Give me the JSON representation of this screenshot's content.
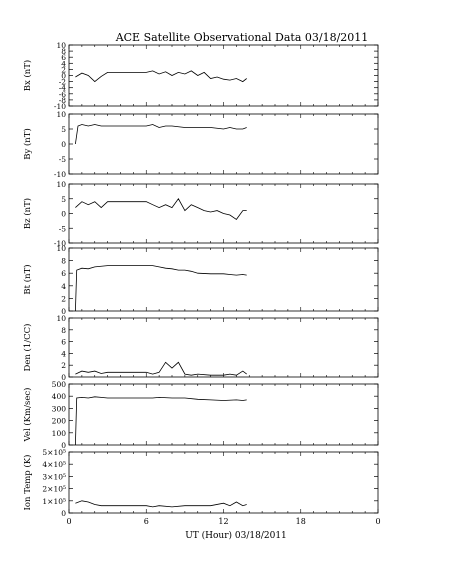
{
  "title": "ACE Satellite Observational Data   03/18/2011",
  "xlabel": "UT (Hour)   03/18/2011",
  "x_ticks": [
    "0",
    "6",
    "12",
    "18",
    "0"
  ],
  "colors": {
    "line": "#000000",
    "background": "#ffffff"
  },
  "chart_data": [
    {
      "type": "line",
      "ylabel": "Bx (nT)",
      "ylim": [
        -10,
        10
      ],
      "yticks": [
        "-10",
        "-8",
        "-6",
        "-4",
        "-2",
        "0",
        "2",
        "4",
        "6",
        "8",
        "10"
      ],
      "xlim": [
        0,
        24
      ],
      "series": [
        {
          "x": [
            0.5,
            1,
            1.5,
            2,
            2.5,
            3,
            4,
            5,
            6,
            6.5,
            7,
            7.5,
            8,
            8.5,
            9,
            9.5,
            10,
            10.5,
            11,
            11.5,
            12,
            12.5,
            13,
            13.5,
            13.8
          ],
          "y": [
            -0.5,
            0.8,
            0,
            -2,
            -0.3,
            1,
            1,
            1,
            1,
            1.5,
            0.5,
            1.2,
            0,
            1,
            0.5,
            1.5,
            0,
            1,
            -1,
            -0.5,
            -1.2,
            -1.5,
            -1,
            -2,
            -1
          ]
        }
      ]
    },
    {
      "type": "line",
      "ylabel": "By (nT)",
      "ylim": [
        -10,
        10
      ],
      "yticks": [
        "-10",
        "-5",
        "0",
        "5",
        "10"
      ],
      "xlim": [
        0,
        24
      ],
      "series": [
        {
          "x": [
            0.5,
            0.7,
            1,
            1.5,
            2,
            2.5,
            3,
            4,
            5,
            6,
            6.5,
            7,
            7.5,
            8,
            9,
            10,
            11,
            12,
            12.5,
            13,
            13.5,
            13.8
          ],
          "y": [
            0,
            6,
            6.5,
            6,
            6.5,
            6,
            6,
            6,
            6,
            6,
            6.5,
            5.5,
            6,
            6,
            5.5,
            5.5,
            5.5,
            5,
            5.5,
            5,
            5,
            5.5
          ]
        }
      ]
    },
    {
      "type": "line",
      "ylabel": "Bz (nT)",
      "ylim": [
        -10,
        10
      ],
      "yticks": [
        "-10",
        "-5",
        "0",
        "5",
        "10"
      ],
      "xlim": [
        0,
        24
      ],
      "series": [
        {
          "x": [
            0.5,
            1,
            1.5,
            2,
            2.5,
            3,
            4,
            5,
            6,
            6.5,
            7,
            7.5,
            8,
            8.5,
            9,
            9.5,
            10,
            10.5,
            11,
            11.5,
            12,
            12.5,
            13,
            13.5,
            13.8
          ],
          "y": [
            2,
            4,
            3,
            4,
            2,
            4,
            4,
            4,
            4,
            3,
            2,
            3,
            2,
            5,
            1,
            3,
            2,
            1,
            0.5,
            1,
            0,
            -0.5,
            -2,
            1,
            1
          ]
        }
      ]
    },
    {
      "type": "line",
      "ylabel": "Bt (nT)",
      "ylim": [
        0,
        10
      ],
      "yticks": [
        "0",
        "2",
        "4",
        "6",
        "8",
        "10"
      ],
      "xlim": [
        0,
        24
      ],
      "series": [
        {
          "x": [
            0.5,
            0.6,
            1,
            1.5,
            2,
            3,
            4,
            5,
            6,
            6.5,
            7,
            7.5,
            8,
            8.5,
            9,
            9.5,
            10,
            11,
            12,
            12.5,
            13,
            13.5,
            13.8
          ],
          "y": [
            0,
            6.5,
            6.8,
            6.7,
            7,
            7.2,
            7.2,
            7.2,
            7.2,
            7.2,
            7,
            6.8,
            6.7,
            6.5,
            6.5,
            6.3,
            6,
            5.9,
            5.9,
            5.8,
            5.7,
            5.8,
            5.7
          ]
        }
      ]
    },
    {
      "type": "line",
      "ylabel": "Den (1/CC)",
      "ylim": [
        0,
        10
      ],
      "yticks": [
        "0",
        "2",
        "4",
        "6",
        "8",
        "10"
      ],
      "xlim": [
        0,
        24
      ],
      "series": [
        {
          "x": [
            0.5,
            1,
            1.5,
            2,
            2.5,
            3,
            4,
            5,
            6,
            6.5,
            7,
            7.5,
            8,
            8.5,
            9,
            9.5,
            10,
            11,
            12,
            12.5,
            13,
            13.5,
            13.8
          ],
          "y": [
            0.5,
            1,
            0.8,
            1,
            0.6,
            0.8,
            0.8,
            0.8,
            0.8,
            0.5,
            0.8,
            2.5,
            1.5,
            2.5,
            0.5,
            0.3,
            0.5,
            0.3,
            0.3,
            0.5,
            0.3,
            1,
            0.5
          ]
        }
      ]
    },
    {
      "type": "line",
      "ylabel": "Vel (Km/sec)",
      "ylim": [
        0,
        500
      ],
      "yticks": [
        "0",
        "100",
        "200",
        "300",
        "400",
        "500"
      ],
      "xlim": [
        0,
        24
      ],
      "series": [
        {
          "x": [
            0.5,
            0.6,
            1,
            1.5,
            2,
            2.5,
            3,
            4,
            5,
            6,
            6.5,
            7,
            8,
            9,
            10,
            11,
            12,
            13,
            13.5,
            13.8
          ],
          "y": [
            0,
            385,
            390,
            385,
            395,
            390,
            385,
            385,
            385,
            385,
            385,
            390,
            385,
            385,
            375,
            370,
            365,
            370,
            365,
            370
          ]
        }
      ]
    },
    {
      "type": "line",
      "ylabel": "Ion Temp (K)",
      "ylim": [
        0,
        500000
      ],
      "yticks": [
        "0",
        "1×10⁵",
        "2×10⁵",
        "3×10⁵",
        "4×10⁵",
        "5×10⁵"
      ],
      "xlim": [
        0,
        24
      ],
      "series": [
        {
          "x": [
            0.5,
            1,
            1.5,
            2,
            2.5,
            3,
            4,
            5,
            6,
            6.5,
            7,
            8,
            9,
            10,
            11,
            12,
            12.5,
            13,
            13.5,
            13.8
          ],
          "y": [
            80000,
            100000,
            90000,
            70000,
            60000,
            60000,
            60000,
            60000,
            60000,
            50000,
            60000,
            50000,
            60000,
            60000,
            60000,
            80000,
            60000,
            90000,
            60000,
            70000
          ]
        }
      ]
    }
  ]
}
